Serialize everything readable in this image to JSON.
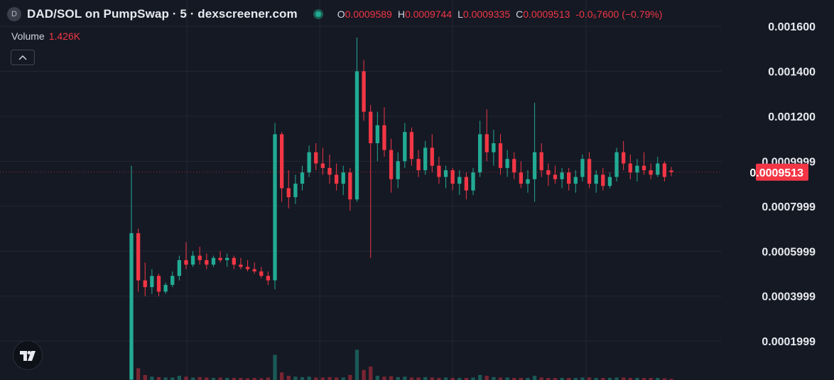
{
  "header": {
    "symbol_icon": "D",
    "title": "DAD/SOL on PumpSwap · 5 · dexscreener.com",
    "open_key": "O",
    "high_key": "H",
    "low_key": "L",
    "close_key": "C",
    "change": "-0.0₅7600 (−0.79%)",
    "volume_label": "Volume",
    "volume_value": "1.426K"
  },
  "chart_data": {
    "type": "candlestick",
    "open": [
      3e-05,
      0.00068,
      0.00047,
      0.00044,
      0.00049,
      0.00042,
      0.00045,
      0.00049,
      0.00056,
      0.00054,
      0.00058,
      0.00056,
      0.00054,
      0.00057,
      0.00056,
      0.00057,
      0.00054,
      0.00053,
      0.00052,
      0.00051,
      0.00049,
      0.00047,
      0.00112,
      0.00088,
      0.00084,
      0.0009,
      0.00095,
      0.00104,
      0.00099,
      0.00097,
      0.00094,
      0.0009,
      0.00095,
      0.00083,
      0.0014,
      0.00122,
      0.00108,
      0.00116,
      0.00105,
      0.00092,
      0.001,
      0.00113,
      0.00101,
      0.00096,
      0.00106,
      0.00098,
      0.00093,
      0.00096,
      0.0009,
      0.00093,
      0.00087,
      0.00095,
      0.00112,
      0.00104,
      0.00108,
      0.00097,
      0.00101,
      0.00095,
      0.0009,
      0.00092,
      0.00104,
      0.00096,
      0.00094,
      0.00092,
      0.00095,
      0.0009,
      0.00093,
      0.00101,
      0.0009,
      0.00094,
      0.00089,
      0.00093,
      0.00104,
      0.00099,
      0.00095,
      0.00098,
      0.00096,
      0.00094,
      0.00099,
      0.0009589
    ],
    "high": [
      0.00098,
      0.0007,
      0.00055,
      0.00052,
      0.0005,
      0.00046,
      0.00051,
      0.00058,
      0.00064,
      0.0006,
      0.00062,
      0.00059,
      0.00058,
      0.0006,
      0.00059,
      0.00058,
      0.00057,
      0.00056,
      0.00055,
      0.00053,
      0.00051,
      0.00117,
      0.00113,
      0.00096,
      0.00094,
      0.00098,
      0.00107,
      0.00108,
      0.00106,
      0.00103,
      0.00099,
      0.00098,
      0.00097,
      0.00155,
      0.00145,
      0.00125,
      0.00122,
      0.00124,
      0.0011,
      0.00104,
      0.00117,
      0.00115,
      0.00105,
      0.00109,
      0.00112,
      0.00102,
      0.00098,
      0.00097,
      0.00096,
      0.00095,
      0.00097,
      0.00118,
      0.00123,
      0.00114,
      0.00112,
      0.00105,
      0.00104,
      0.001,
      0.00096,
      0.00126,
      0.00108,
      0.00099,
      0.00098,
      0.00097,
      0.00097,
      0.00096,
      0.00103,
      0.00104,
      0.00096,
      0.00097,
      0.00095,
      0.00106,
      0.00109,
      0.00103,
      0.00101,
      0.00104,
      0.00099,
      0.00102,
      0.001,
      0.0009744
    ],
    "low": [
      2e-05,
      0.00042,
      0.0004,
      0.00041,
      0.0004,
      0.00041,
      0.00044,
      0.00047,
      0.00052,
      0.00053,
      0.00054,
      0.00052,
      0.00053,
      0.00055,
      0.00053,
      0.00052,
      0.00052,
      0.00051,
      0.0005,
      0.00048,
      0.00045,
      0.00043,
      0.00082,
      0.00079,
      0.00081,
      0.00087,
      0.00093,
      0.00096,
      0.00094,
      0.0009,
      0.00087,
      0.00085,
      0.00078,
      0.00082,
      0.00118,
      0.00057,
      0.001,
      0.00102,
      0.00086,
      0.00088,
      0.00097,
      0.00098,
      0.00093,
      0.00094,
      0.00095,
      0.0009,
      0.00088,
      0.00087,
      0.00085,
      0.00083,
      0.00085,
      0.00093,
      0.001,
      0.00098,
      0.00094,
      0.00093,
      0.00092,
      0.00088,
      0.00086,
      0.00082,
      0.00093,
      0.00089,
      0.0009,
      0.00088,
      0.00087,
      0.00086,
      0.00091,
      0.00088,
      0.00086,
      0.00087,
      0.00088,
      0.00091,
      0.00096,
      0.00092,
      0.00091,
      0.00094,
      0.00092,
      0.00093,
      0.00091,
      0.0009335
    ],
    "close": [
      0.00068,
      0.00047,
      0.00044,
      0.00049,
      0.00042,
      0.00045,
      0.00049,
      0.00056,
      0.00054,
      0.00058,
      0.00056,
      0.00054,
      0.00057,
      0.00056,
      0.00057,
      0.00054,
      0.00053,
      0.00052,
      0.00051,
      0.00049,
      0.00047,
      0.00112,
      0.00088,
      0.00084,
      0.0009,
      0.00095,
      0.00104,
      0.00099,
      0.00097,
      0.00094,
      0.0009,
      0.00095,
      0.00083,
      0.0014,
      0.00122,
      0.00108,
      0.00116,
      0.00105,
      0.00092,
      0.001,
      0.00113,
      0.00101,
      0.00096,
      0.00106,
      0.00098,
      0.00093,
      0.00096,
      0.0009,
      0.00093,
      0.00087,
      0.00095,
      0.00112,
      0.00104,
      0.00108,
      0.00097,
      0.00101,
      0.00095,
      0.0009,
      0.00092,
      0.00104,
      0.00096,
      0.00094,
      0.00092,
      0.00095,
      0.0009,
      0.00093,
      0.00101,
      0.0009,
      0.00094,
      0.00089,
      0.00093,
      0.00104,
      0.00099,
      0.00095,
      0.00098,
      0.00096,
      0.00094,
      0.00099,
      0.00093,
      0.0009513
    ],
    "volume": [
      38000,
      14000,
      6000,
      4000,
      3500,
      3000,
      3000,
      5000,
      4000,
      3000,
      3500,
      3000,
      2500,
      3000,
      2500,
      2500,
      2500,
      2000,
      2500,
      2000,
      3000,
      30000,
      9000,
      5000,
      4000,
      3500,
      4000,
      3000,
      3000,
      3500,
      3000,
      3000,
      6000,
      36000,
      12000,
      16000,
      5000,
      4000,
      4500,
      3500,
      4000,
      3000,
      3000,
      3500,
      3000,
      2500,
      3000,
      2500,
      2500,
      2500,
      3000,
      6000,
      5000,
      3500,
      3000,
      3000,
      2500,
      2500,
      2500,
      5000,
      3000,
      2500,
      2500,
      2500,
      2500,
      2500,
      3000,
      3000,
      2500,
      2500,
      2500,
      3000,
      3000,
      2500,
      2500,
      2500,
      2500,
      2500,
      2000,
      1426
    ],
    "ylim": [
      2.7e-05,
      0.001717
    ],
    "yticks": [
      {
        "value": 0.0016,
        "label": "0.001600"
      },
      {
        "value": 0.0014,
        "label": "0.001400"
      },
      {
        "value": 0.0012,
        "label": "0.001200"
      },
      0.0009999,
      0.0007999,
      0.0005999,
      0.0003999,
      0.0001999
    ],
    "grid": true,
    "up_color": "#22ab94",
    "down_color": "#f23645"
  }
}
